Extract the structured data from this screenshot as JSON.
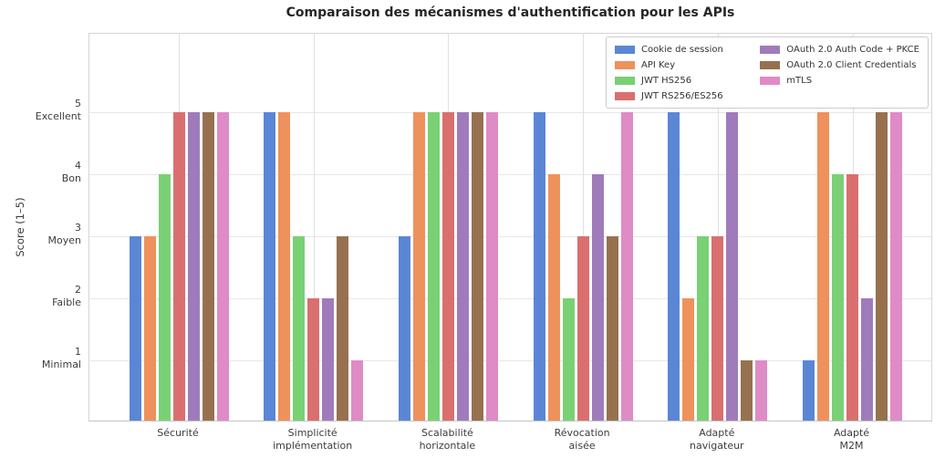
{
  "chart_data": {
    "type": "bar",
    "title": "Comparaison des mécanismes d'authentification pour les APIs",
    "ylabel": "Score (1–5)",
    "ylim": [
      0,
      6.25
    ],
    "grid": true,
    "legend_position": "upper right, 2 columns",
    "categories": [
      "Sécurité",
      "Simplicité\nimplémentation",
      "Scalabilité\nhorizontale",
      "Révocation\naisée",
      "Adapté\nnavigateur",
      "Adapté\nM2M"
    ],
    "yticks": [
      {
        "value": 5,
        "label": "5\nExcellent"
      },
      {
        "value": 4,
        "label": "4\nBon"
      },
      {
        "value": 3,
        "label": "3\nMoyen"
      },
      {
        "value": 2,
        "label": "2\nFaible"
      },
      {
        "value": 1,
        "label": "1\nMinimal"
      }
    ],
    "series": [
      {
        "name": "Cookie de session",
        "color": "#5A86D5",
        "values": [
          3,
          5,
          3,
          5,
          5,
          1
        ]
      },
      {
        "name": "API Key",
        "color": "#EF915C",
        "values": [
          3,
          5,
          5,
          4,
          2,
          5
        ]
      },
      {
        "name": "JWT HS256",
        "color": "#79D174",
        "values": [
          4,
          3,
          5,
          2,
          3,
          4
        ]
      },
      {
        "name": "JWT RS256/ES256",
        "color": "#DA6F6F",
        "values": [
          5,
          2,
          5,
          3,
          3,
          4
        ]
      },
      {
        "name": "OAuth 2.0 Auth Code + PKCE",
        "color": "#A07BBB",
        "values": [
          5,
          2,
          5,
          4,
          5,
          2
        ]
      },
      {
        "name": "OAuth 2.0 Client Credentials",
        "color": "#97714F",
        "values": [
          5,
          3,
          5,
          3,
          1,
          5
        ]
      },
      {
        "name": "mTLS",
        "color": "#DF8BC6",
        "values": [
          5,
          1,
          5,
          5,
          1,
          5
        ]
      }
    ],
    "colors": {
      "background": "#ffffff",
      "gridline": "#e7e7e7",
      "spine": "#d6d6d6",
      "title_text": "#262626",
      "tick_text": "#3d3d3d"
    }
  }
}
